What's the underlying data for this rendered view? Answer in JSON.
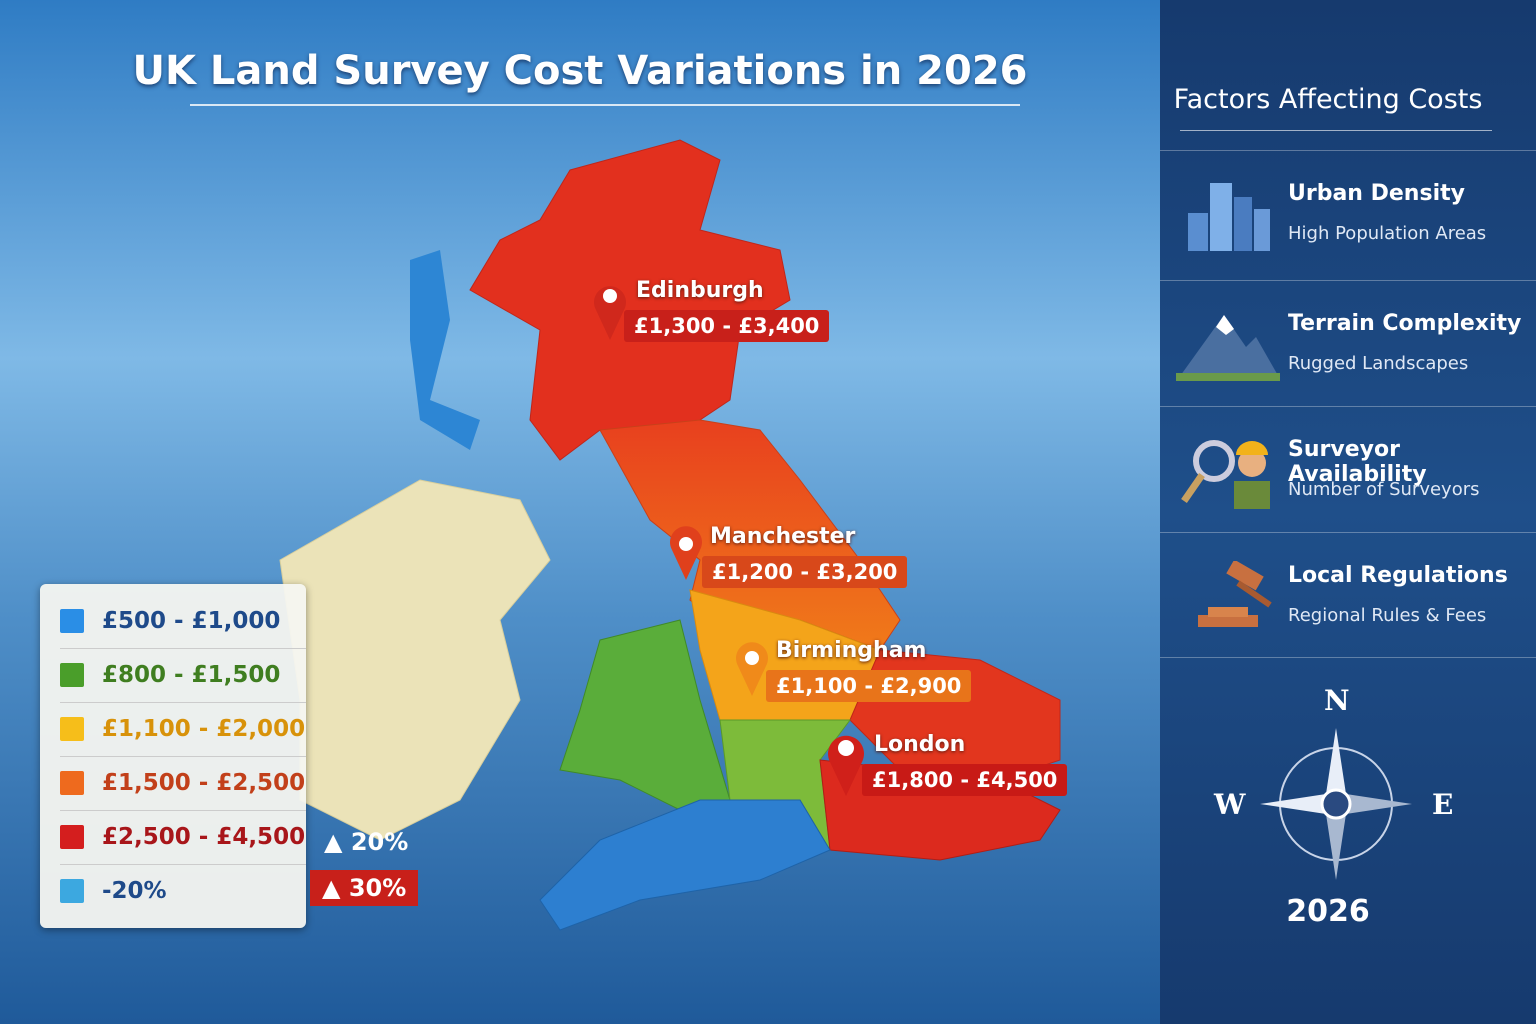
{
  "header": {
    "title": "UK Land Survey Cost Variations in 2026"
  },
  "cities": [
    {
      "name": "Edinburgh",
      "range": "£1,300 - £3,400"
    },
    {
      "name": "Manchester",
      "range": "£1,200 - £3,200"
    },
    {
      "name": "Birmingham",
      "range": "£1,100 - £2,900"
    },
    {
      "name": "London",
      "range": "£1,800 - £4,500"
    }
  ],
  "legend": {
    "items": [
      "£500 - £1,000",
      "£800 - £1,500",
      "£1,100 - £2,000",
      "£1,500 - £2,500",
      "£2,500 - £4,500",
      "-20%"
    ],
    "badges": [
      "20%",
      "30%"
    ]
  },
  "sidebar": {
    "title": "Factors Affecting Costs",
    "factors": [
      {
        "title": "Urban Density",
        "subtitle": "High Population Areas"
      },
      {
        "title": "Terrain Complexity",
        "subtitle": "Rugged Landscapes"
      },
      {
        "title": "Surveyor Availability",
        "subtitle": "Number of Surveyors"
      },
      {
        "title": "Local Regulations",
        "subtitle": "Regional Rules & Fees"
      }
    ],
    "compass": {
      "n": "N",
      "w": "W",
      "e": "E"
    },
    "year": "2026"
  }
}
